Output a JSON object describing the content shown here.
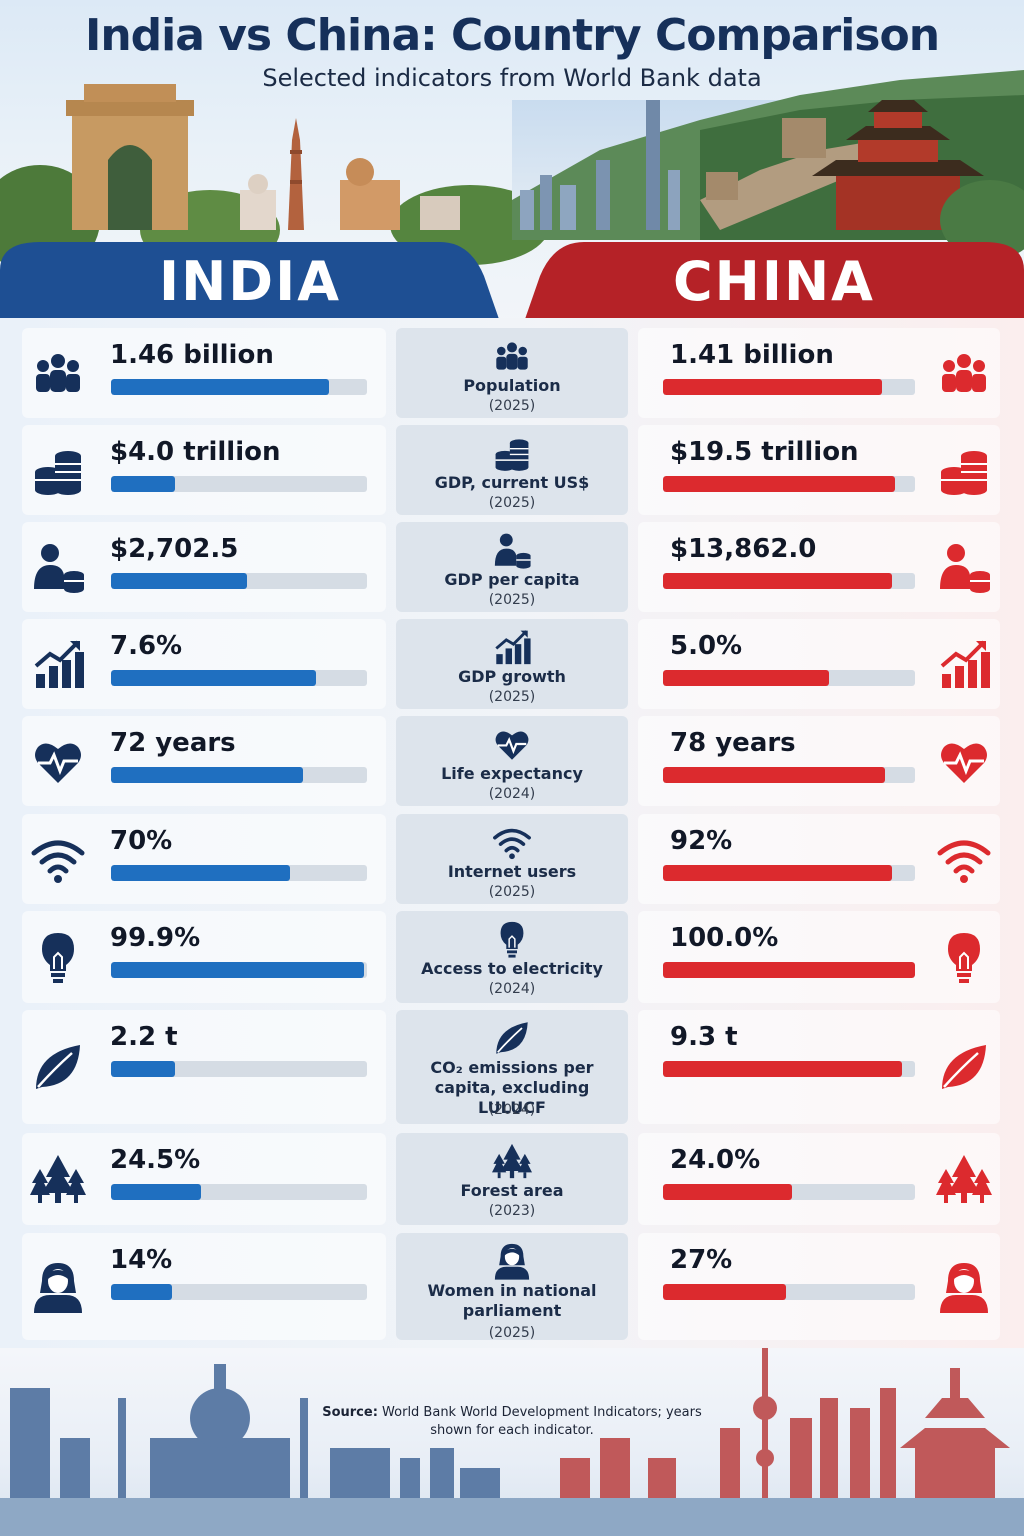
{
  "header": {
    "title": "India vs China: Country Comparison",
    "subtitle": "Selected indicators from World Bank data"
  },
  "countries": {
    "left": "INDIA",
    "right": "CHINA"
  },
  "colors": {
    "india": "#1f6fc0",
    "china": "#dc2a2e",
    "india_tab": "#1e4f93",
    "china_tab": "#b52227",
    "icon_navy": "#16305a"
  },
  "chart_data": {
    "type": "bar",
    "layout": "paired horizontal bars",
    "series": [
      {
        "name": "INDIA",
        "values_text": [
          "1.46 billion",
          "$4.0 trillion",
          "$2,702.5",
          "7.6%",
          "72 years",
          "70%",
          "99.9%",
          "2.2 t",
          "24.5%",
          "14%"
        ]
      },
      {
        "name": "CHINA",
        "values_text": [
          "1.41 billion",
          "$19.5 trillion",
          "$13,862.0",
          "5.0%",
          "78 years",
          "92%",
          "100.0%",
          "9.3 t",
          "24.0%",
          "27%"
        ]
      }
    ],
    "indicators": [
      {
        "name": "Population",
        "year": "(2025)",
        "icon": "people-icon",
        "india": "1.46 billion",
        "china": "1.41 billion",
        "india_fill": 0.85,
        "china_fill": 0.87
      },
      {
        "name": "GDP, current US$",
        "year": "(2025)",
        "icon": "coins-icon",
        "india": "$4.0 trillion",
        "china": "$19.5 trillion",
        "india_fill": 0.25,
        "china_fill": 0.92
      },
      {
        "name": "GDP per capita",
        "year": "(2025)",
        "icon": "person-coins-icon",
        "india": "$2,702.5",
        "china": "$13,862.0",
        "india_fill": 0.53,
        "china_fill": 0.91
      },
      {
        "name": "GDP growth",
        "year": "(2025)",
        "icon": "growth-chart-icon",
        "india": "7.6%",
        "china": "5.0%",
        "india_fill": 0.8,
        "china_fill": 0.66
      },
      {
        "name": "Life expectancy",
        "year": "(2024)",
        "icon": "heart-pulse-icon",
        "india": "72 years",
        "china": "78 years",
        "india_fill": 0.75,
        "china_fill": 0.88
      },
      {
        "name": "Internet users",
        "year": "(2025)",
        "icon": "wifi-icon",
        "india": "70%",
        "china": "92%",
        "india_fill": 0.7,
        "china_fill": 0.91
      },
      {
        "name": "Access to electricity",
        "year": "(2024)",
        "icon": "lightbulb-icon",
        "india": "99.9%",
        "china": "100.0%",
        "india_fill": 0.99,
        "china_fill": 1.0
      },
      {
        "name": "CO₂ emissions per capita, excluding LULUCF",
        "year": "(2024)",
        "icon": "leaf-icon",
        "india": "2.2 t",
        "china": "9.3 t",
        "india_fill": 0.25,
        "china_fill": 0.95
      },
      {
        "name": "Forest area",
        "year": "(2023)",
        "icon": "trees-icon",
        "india": "24.5%",
        "china": "24.0%",
        "india_fill": 0.35,
        "china_fill": 0.51
      },
      {
        "name": "Women in national parliament",
        "year": "(2025)",
        "icon": "woman-icon",
        "india": "14%",
        "china": "27%",
        "india_fill": 0.24,
        "china_fill": 0.49
      }
    ]
  },
  "footer": {
    "source_label": "Source:",
    "source_text": "World Bank World Development Indicators; years shown for each indicator."
  }
}
